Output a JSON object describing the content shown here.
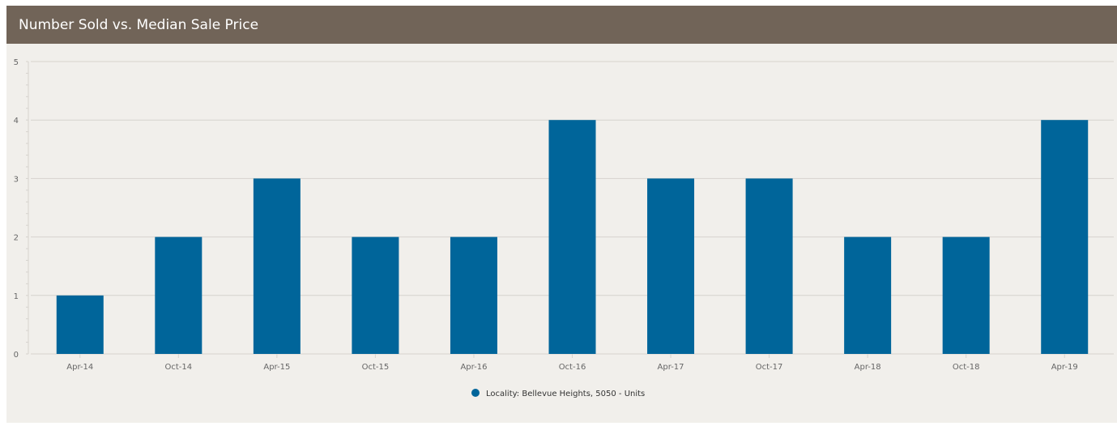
{
  "header": {
    "title": "Number Sold vs. Median Sale Price"
  },
  "colors": {
    "header_bg": "#716458",
    "panel_bg": "#f1efeb",
    "bar": "#00659a",
    "grid": "#d6d3ce",
    "tick_text": "#666666"
  },
  "chart_data": {
    "type": "bar",
    "title": "Number Sold vs. Median Sale Price",
    "xlabel": "",
    "ylabel": "",
    "ylim": [
      0,
      5
    ],
    "yticks": [
      0,
      1,
      2,
      3,
      4,
      5
    ],
    "categories": [
      "Apr-14",
      "Oct-14",
      "Apr-15",
      "Oct-15",
      "Apr-16",
      "Oct-16",
      "Apr-17",
      "Oct-17",
      "Apr-18",
      "Oct-18",
      "Apr-19"
    ],
    "series": [
      {
        "name": "Locality: Bellevue Heights, 5050 - Units",
        "values": [
          1,
          2,
          3,
          2,
          2,
          4,
          3,
          3,
          2,
          2,
          4
        ]
      }
    ],
    "grid": true,
    "legend_position": "bottom-center"
  }
}
